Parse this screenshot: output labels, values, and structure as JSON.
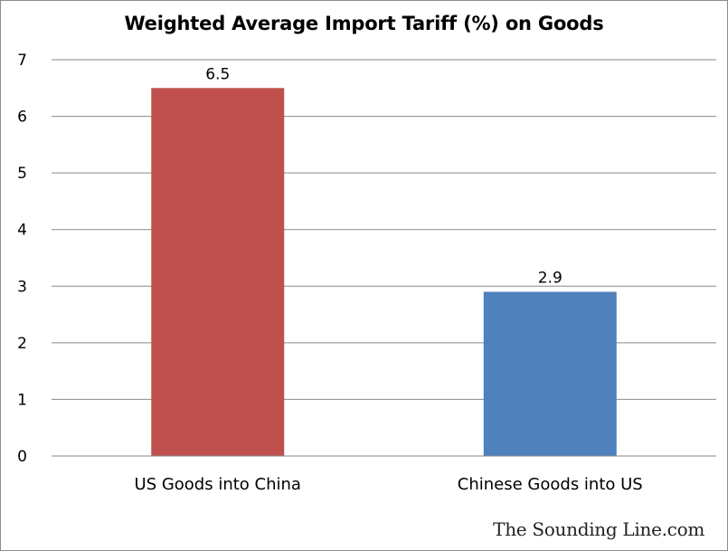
{
  "chart_data": {
    "type": "bar",
    "title": "Weighted Average Import Tariff (%) on Goods",
    "categories": [
      "US Goods into China",
      "Chinese Goods into US"
    ],
    "values": [
      6.5,
      2.9
    ],
    "colors": [
      "#c0504d",
      "#4f81bd"
    ],
    "data_labels": [
      "6.5",
      "2.9"
    ],
    "ylim": [
      0,
      7
    ],
    "yticks": [
      0,
      1,
      2,
      3,
      4,
      5,
      6,
      7
    ],
    "ytick_labels": [
      "0",
      "1",
      "2",
      "3",
      "4",
      "5",
      "6",
      "7"
    ],
    "grid": true,
    "legend": "none",
    "xlabel": "",
    "ylabel": ""
  },
  "watermark": "The Sounding Line.com"
}
